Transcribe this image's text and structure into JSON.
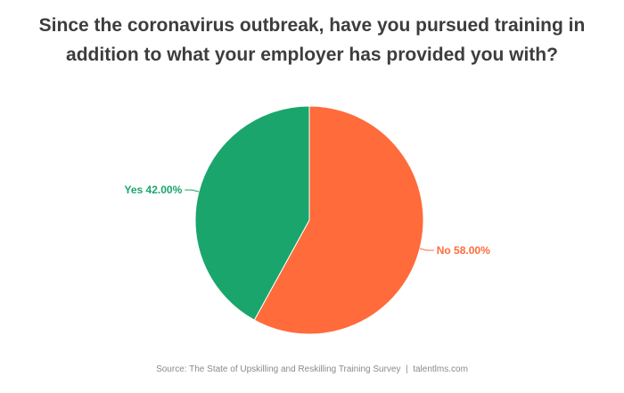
{
  "chart_data": {
    "type": "pie",
    "title_lines": [
      "Since the coronavirus outbreak, have you pursued training in",
      "addition to what your employer has provided you with?"
    ],
    "slices": [
      {
        "label": "No",
        "value": 58.0,
        "display": "No 58.00%",
        "color": "#ff6b3b"
      },
      {
        "label": "Yes",
        "value": 42.0,
        "display": "Yes 42.00%",
        "color": "#1aa56c"
      }
    ],
    "start": "12 o'clock",
    "direction": "clockwise"
  },
  "footer": {
    "source": "Source: The State of Upskilling and Reskilling Training Survey",
    "separator": "|",
    "site": "talentlms.com"
  }
}
